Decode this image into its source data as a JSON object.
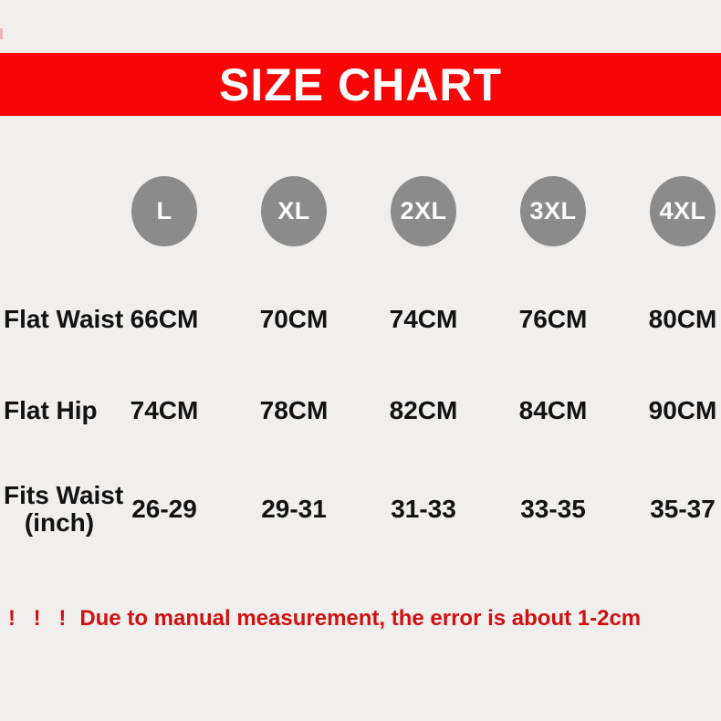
{
  "banner": {
    "title": "SIZE CHART",
    "background": "#f80606",
    "text_color": "#ffffff"
  },
  "sizes": [
    "L",
    "XL",
    "2XL",
    "3XL",
    "4XL"
  ],
  "rows": [
    {
      "label": "Flat Waist",
      "values": [
        "66CM",
        "70CM",
        "74CM",
        "76CM",
        "80CM"
      ]
    },
    {
      "label": "Flat Hip",
      "values": [
        "74CM",
        "78CM",
        "82CM",
        "84CM",
        "90CM"
      ]
    },
    {
      "label": "Fits Waist",
      "label_line2": "(inch)",
      "values": [
        "26-29",
        "29-31",
        "31-33",
        "33-35",
        "35-37"
      ]
    }
  ],
  "note": {
    "prefix": "! ! !",
    "text": "Due to manual measurement, the error is about 1-2cm",
    "color": "#d01111"
  },
  "colors": {
    "background": "#f0efed",
    "circle": "#8b8b8b",
    "table_text": "#121212"
  },
  "chart_data": {
    "type": "table",
    "title": "SIZE CHART",
    "columns": [
      "Size",
      "L",
      "XL",
      "2XL",
      "3XL",
      "4XL"
    ],
    "rows": [
      [
        "Flat Waist",
        "66CM",
        "70CM",
        "74CM",
        "76CM",
        "80CM"
      ],
      [
        "Flat Hip",
        "74CM",
        "78CM",
        "82CM",
        "84CM",
        "90CM"
      ],
      [
        "Fits Waist (inch)",
        "26-29",
        "29-31",
        "31-33",
        "33-35",
        "35-37"
      ]
    ],
    "footnote": "! ! ! Due to manual measurement, the error is about 1-2cm",
    "layout": "header row of gray size circles, bold black measurement grid, red title banner, red footnote"
  }
}
